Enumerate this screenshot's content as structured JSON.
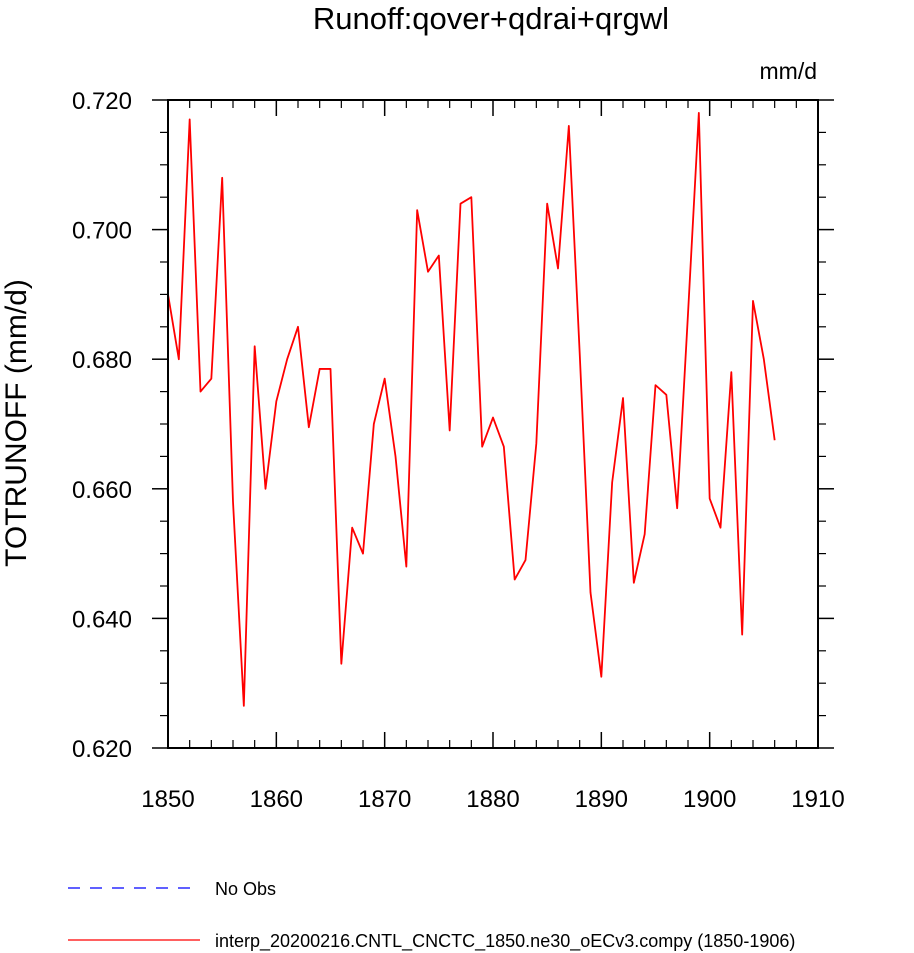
{
  "chart_data": {
    "type": "line",
    "title": "Runoff:qover+qdrai+qrgwl",
    "units": "mm/d",
    "ylabel": "TOTRUNOFF  (mm/d)",
    "xlabel": "",
    "xlim": [
      1850,
      1910
    ],
    "ylim": [
      0.62,
      0.72
    ],
    "xticks": [
      1850,
      1860,
      1870,
      1880,
      1890,
      1900,
      1910
    ],
    "yticks": [
      0.62,
      0.64,
      0.66,
      0.68,
      0.7,
      0.72
    ],
    "ytick_labels": [
      "0.620",
      "0.640",
      "0.660",
      "0.680",
      "0.700",
      "0.720"
    ],
    "xtick_labels": [
      "1850",
      "1860",
      "1870",
      "1880",
      "1890",
      "1900",
      "1910"
    ],
    "grid": false,
    "legend_position": "bottom-left",
    "series": [
      {
        "name": "interp_20200216.CNTL_CNCTC_1850.ne30_oECv3.compy (1850-1906)",
        "color": "#ff0000",
        "dash": "solid",
        "x": [
          1850,
          1851,
          1852,
          1853,
          1854,
          1855,
          1856,
          1857,
          1858,
          1859,
          1860,
          1861,
          1862,
          1863,
          1864,
          1865,
          1866,
          1867,
          1868,
          1869,
          1870,
          1871,
          1872,
          1873,
          1874,
          1875,
          1876,
          1877,
          1878,
          1879,
          1880,
          1881,
          1882,
          1883,
          1884,
          1885,
          1886,
          1887,
          1888,
          1889,
          1890,
          1891,
          1892,
          1893,
          1894,
          1895,
          1896,
          1897,
          1898,
          1899,
          1900,
          1901,
          1902,
          1903,
          1904,
          1905,
          1906
        ],
        "values": [
          0.69,
          0.68,
          0.717,
          0.675,
          0.677,
          0.708,
          0.658,
          0.6265,
          0.682,
          0.66,
          0.6735,
          0.68,
          0.685,
          0.6695,
          0.6785,
          0.6785,
          0.633,
          0.654,
          0.65,
          0.67,
          0.677,
          0.665,
          0.648,
          0.703,
          0.6935,
          0.696,
          0.669,
          0.704,
          0.705,
          0.6665,
          0.671,
          0.6665,
          0.646,
          0.649,
          0.667,
          0.704,
          0.694,
          0.716,
          0.681,
          0.644,
          0.631,
          0.661,
          0.674,
          0.6455,
          0.653,
          0.676,
          0.6745,
          0.657,
          0.687,
          0.718,
          0.6585,
          0.654,
          0.678,
          0.6375,
          0.689,
          0.68,
          0.6675
        ]
      },
      {
        "name": "No Obs",
        "color": "#0000ff",
        "dash": "dashed",
        "x": [],
        "values": []
      }
    ]
  }
}
